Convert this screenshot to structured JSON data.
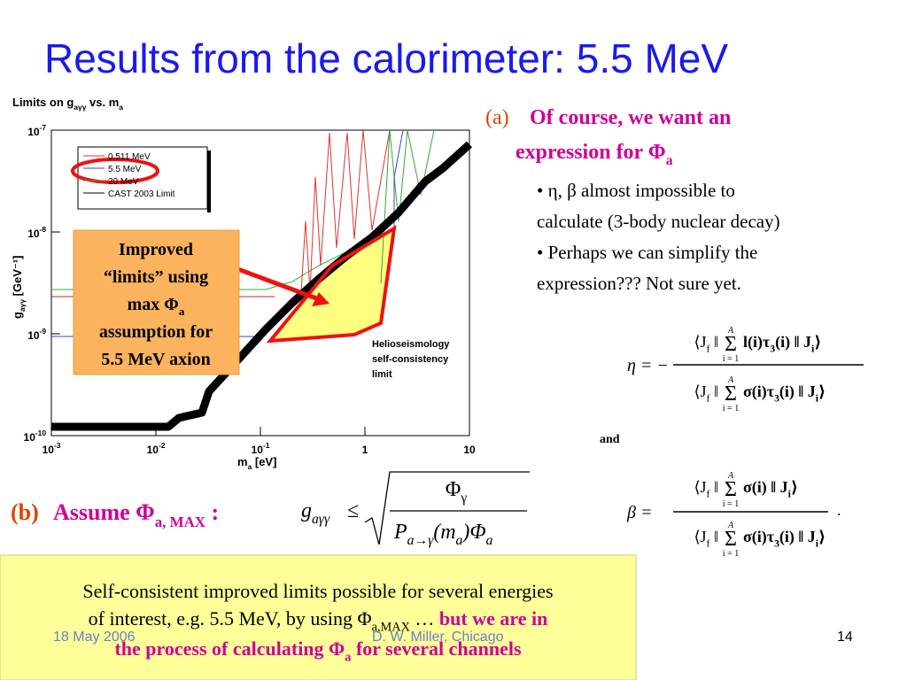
{
  "title": "Results from the calorimeter: 5.5 MeV",
  "plot": {
    "title": [
      "Limits on g",
      "aγγ",
      " vs. m",
      "a"
    ],
    "y_label": [
      "g",
      "aγγ",
      " [GeV⁻¹]"
    ],
    "x_label": [
      "m",
      "a",
      " [eV]"
    ],
    "y_ticks": [
      {
        "base": "10",
        "exponent": "-7"
      },
      {
        "base": "10",
        "exponent": "-8"
      },
      {
        "base": "10",
        "exponent": "-9"
      },
      {
        "base": "10",
        "exponent": "-10"
      }
    ],
    "x_ticks": [
      {
        "base": "10",
        "exponent": "-3"
      },
      {
        "base": "10",
        "exponent": "-2"
      },
      {
        "base": "10",
        "exponent": "-1"
      },
      {
        "base": "1"
      },
      {
        "base": "10"
      }
    ],
    "legend": [
      "0.511 MeV",
      "5.5 MeV",
      "20 MeV",
      "CAST 2003 Limit"
    ],
    "annotation": [
      "Helioseismology",
      "self-consistency",
      "limit"
    ],
    "callout": [
      [
        "Improved"
      ],
      [
        "“limits” using"
      ],
      [
        "max Φ",
        "a"
      ],
      [
        "assumption for"
      ],
      [
        "5.5 MeV axion"
      ]
    ]
  },
  "part_a": {
    "label": "(a)",
    "heading": [
      [
        "Of course, we want an"
      ],
      [
        "expression for Φ",
        "a"
      ]
    ],
    "bullets": [
      [
        "• η, β almost impossible to",
        "calculate (3-body nuclear decay)"
      ],
      [
        "• Perhaps we can simplify the",
        "expression??? Not sure yet."
      ]
    ]
  },
  "equations": {
    "eta": {
      "lhs": "η = −",
      "sum": "Σ",
      "sum_upper": "A",
      "sum_lower": "i = 1",
      "num_left": [
        "⟨J",
        "f",
        "  ‖"
      ],
      "num_right": [
        "l(i)τ",
        "3",
        "(i) ‖  J",
        "i",
        "⟩"
      ],
      "den_left": [
        "⟨J",
        "f",
        "  ‖"
      ],
      "den_right": [
        "σ(i)τ",
        "3",
        "(i) ‖  J",
        "i",
        "⟩"
      ]
    },
    "and": "and",
    "beta": {
      "lhs": "β =",
      "sum": "Σ",
      "sum_upper": "A",
      "sum_lower": "i = 1",
      "num_left": [
        "⟨J",
        "f",
        "  ‖"
      ],
      "num_right": [
        "σ(i)  ‖  J",
        "i",
        "⟩"
      ],
      "den_left": [
        "⟨J",
        "f",
        "  ‖"
      ],
      "den_right": [
        "σ(i)τ",
        "3",
        "(i) ‖  J",
        "i",
        "⟩"
      ],
      "end": "."
    }
  },
  "part_b": {
    "label": "(b)",
    "text": [
      "Assume Φ",
      "a, MAX",
      " :"
    ]
  },
  "formula": {
    "lhs": [
      "g",
      "aγγ"
    ],
    "relation": "≤",
    "numerator": [
      "Φ",
      "γ"
    ],
    "denominator": [
      "P",
      "a→γ",
      "(m",
      "a",
      ")Φ",
      "a"
    ]
  },
  "conclusion": {
    "line1": [
      "Self-consistent improved limits possible for several energies"
    ],
    "line2": [
      "of interest, e.g. 5.5 MeV, by using Φ",
      "a,MAX",
      " … "
    ],
    "highlight1": "but we are in",
    "line3": [
      "the process of calculating Φ",
      "a",
      " for several channels"
    ]
  },
  "footer": {
    "date": "18 May 2006",
    "author": "D. W. Miller, Chicago",
    "page": "14"
  }
}
